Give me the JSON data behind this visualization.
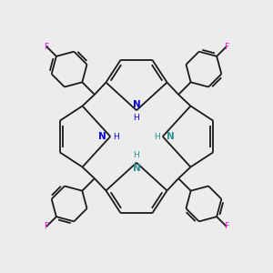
{
  "bg_color": "#ececec",
  "bond_color": "#1a1a1a",
  "N_blue": "#0000ee",
  "N_teal": "#2a9090",
  "F_color": "#ee00ee",
  "lw": 1.3,
  "dbo": 0.035,
  "xlim": [
    -1.55,
    1.55
  ],
  "ylim": [
    -1.55,
    1.55
  ]
}
